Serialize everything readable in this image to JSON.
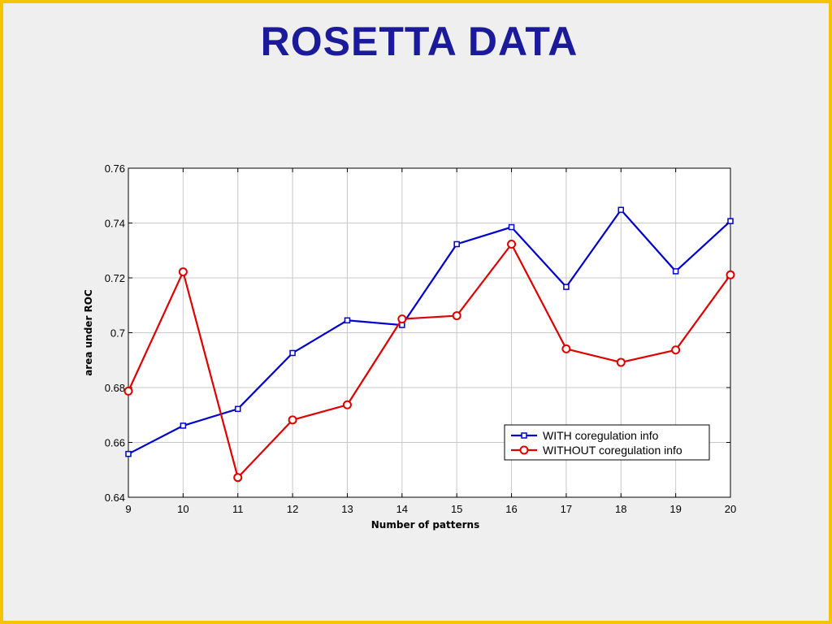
{
  "slide": {
    "title": "ROSETTA DATA",
    "border_color": "#f5c400",
    "title_color": "#1a1a9a"
  },
  "chart_data": {
    "type": "line",
    "title": "",
    "xlabel": "Number of patterns",
    "ylabel": "area under ROC",
    "x": [
      9,
      10,
      11,
      12,
      13,
      14,
      15,
      16,
      17,
      18,
      19,
      20
    ],
    "xlim": [
      9,
      20
    ],
    "ylim": [
      0.64,
      0.76
    ],
    "xticks": [
      "9",
      "10",
      "11",
      "12",
      "13",
      "14",
      "15",
      "16",
      "17",
      "18",
      "19",
      "20"
    ],
    "yticks": [
      "0.64",
      "0.66",
      "0.68",
      "0.7",
      "0.72",
      "0.74",
      "0.76"
    ],
    "grid": true,
    "legend_position": "lower-right",
    "series": [
      {
        "name": "WITH coregulation info",
        "color": "#0000cc",
        "marker": "square",
        "values": [
          0.6558,
          0.6661,
          0.6722,
          0.6926,
          0.7045,
          0.7028,
          0.7323,
          0.7385,
          0.7167,
          0.7448,
          0.7224,
          0.7407
        ]
      },
      {
        "name": "WITHOUT coregulation info",
        "color": "#dd0000",
        "marker": "circle",
        "values": [
          0.6787,
          0.7222,
          0.6472,
          0.6682,
          0.6737,
          0.705,
          0.7062,
          0.7323,
          0.6941,
          0.6892,
          0.6937,
          0.7211
        ]
      }
    ]
  }
}
